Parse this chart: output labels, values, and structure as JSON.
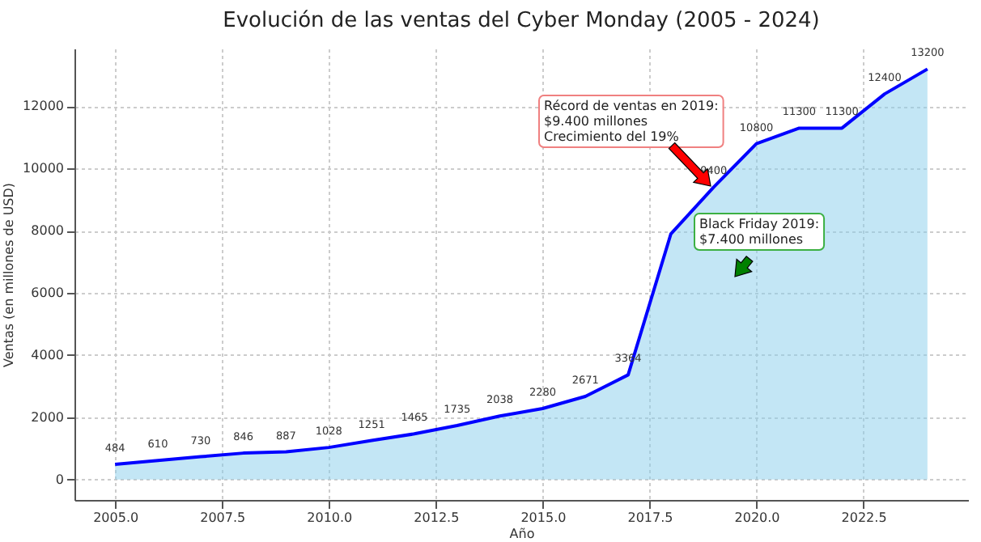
{
  "chart_data": {
    "type": "area",
    "title": "Evolución de las ventas del Cyber Monday (2005 - 2024)",
    "xlabel": "Año",
    "ylabel": "Ventas (en millones de USD)",
    "x": [
      2005,
      2006,
      2007,
      2008,
      2009,
      2010,
      2011,
      2012,
      2013,
      2014,
      2015,
      2016,
      2017,
      2018,
      2019,
      2020,
      2021,
      2022,
      2023,
      2024
    ],
    "series": [
      {
        "color": "#0000ff",
        "values": [
          484,
          610,
          730,
          846,
          887,
          1028,
          1251,
          1465,
          1735,
          2038,
          2280,
          2671,
          3364,
          7900,
          9400,
          10800,
          11300,
          11300,
          12400,
          13200
        ],
        "value_labels": [
          "484",
          "610",
          "730",
          "846",
          "887",
          "1028",
          "1251",
          "1465",
          "1735",
          "2038",
          "2280",
          "2671",
          "3364",
          null,
          "9400",
          "10800",
          "11300",
          "11300",
          "12400",
          "13200"
        ]
      }
    ],
    "xlim": [
      2004.05,
      2024.95
    ],
    "ylim": [
      -660,
      13860
    ],
    "xticks": [
      {
        "value": 2005,
        "label": "2005.0"
      },
      {
        "value": 2007.5,
        "label": "2007.5"
      },
      {
        "value": 2010,
        "label": "2010.0"
      },
      {
        "value": 2012.5,
        "label": "2012.5"
      },
      {
        "value": 2015,
        "label": "2015.0"
      },
      {
        "value": 2017.5,
        "label": "2017.5"
      },
      {
        "value": 2020,
        "label": "2020.0"
      },
      {
        "value": 2022.5,
        "label": "2022.5"
      }
    ],
    "yticks": [
      0,
      2000,
      4000,
      6000,
      8000,
      10000,
      12000
    ],
    "grid": true,
    "annotations": [
      "Récord de ventas en 2019:\n$9.400 millones\nCrecimiento del 19%",
      "Black Friday 2019:\n$7.400 millones"
    ]
  }
}
